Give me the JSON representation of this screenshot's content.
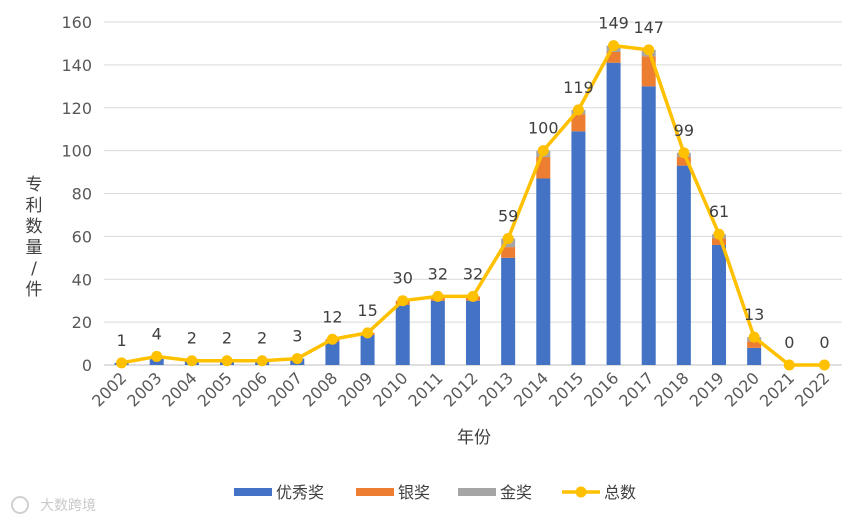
{
  "chart_data": {
    "type": "bar",
    "stacked": true,
    "categories": [
      "2002",
      "2003",
      "2004",
      "2005",
      "2006",
      "2007",
      "2008",
      "2009",
      "2010",
      "2011",
      "2012",
      "2013",
      "2014",
      "2015",
      "2016",
      "2017",
      "2018",
      "2019",
      "2020",
      "2021",
      "2022"
    ],
    "xlabel": "年份",
    "ylabel": "专利数量/件",
    "ylim": [
      0,
      160
    ],
    "yticks": [
      0,
      20,
      40,
      60,
      80,
      100,
      120,
      140,
      160
    ],
    "grid": true,
    "legend_position": "bottom",
    "series": [
      {
        "name": "优秀奖",
        "kind": "bar",
        "color": "#4472C4",
        "values": [
          1,
          3,
          2,
          2,
          2,
          3,
          11,
          14,
          28,
          30,
          30,
          50,
          87,
          109,
          141,
          130,
          93,
          56,
          8,
          0,
          0
        ]
      },
      {
        "name": "银奖",
        "kind": "bar",
        "color": "#ED7D31",
        "values": [
          0,
          1,
          0,
          0,
          0,
          0,
          1,
          1,
          2,
          2,
          2,
          5,
          10,
          8,
          5,
          14,
          4,
          3,
          3,
          0,
          0
        ]
      },
      {
        "name": "金奖",
        "kind": "bar",
        "color": "#A5A5A5",
        "values": [
          0,
          0,
          0,
          0,
          0,
          0,
          0,
          0,
          0,
          0,
          0,
          4,
          3,
          2,
          3,
          3,
          2,
          2,
          2,
          0,
          0
        ]
      },
      {
        "name": "总数",
        "kind": "line",
        "color": "#FFC000",
        "values": [
          1,
          4,
          2,
          2,
          2,
          3,
          12,
          15,
          30,
          32,
          32,
          59,
          100,
          119,
          149,
          147,
          99,
          61,
          13,
          0,
          0
        ]
      }
    ]
  },
  "watermark": "大数跨境"
}
